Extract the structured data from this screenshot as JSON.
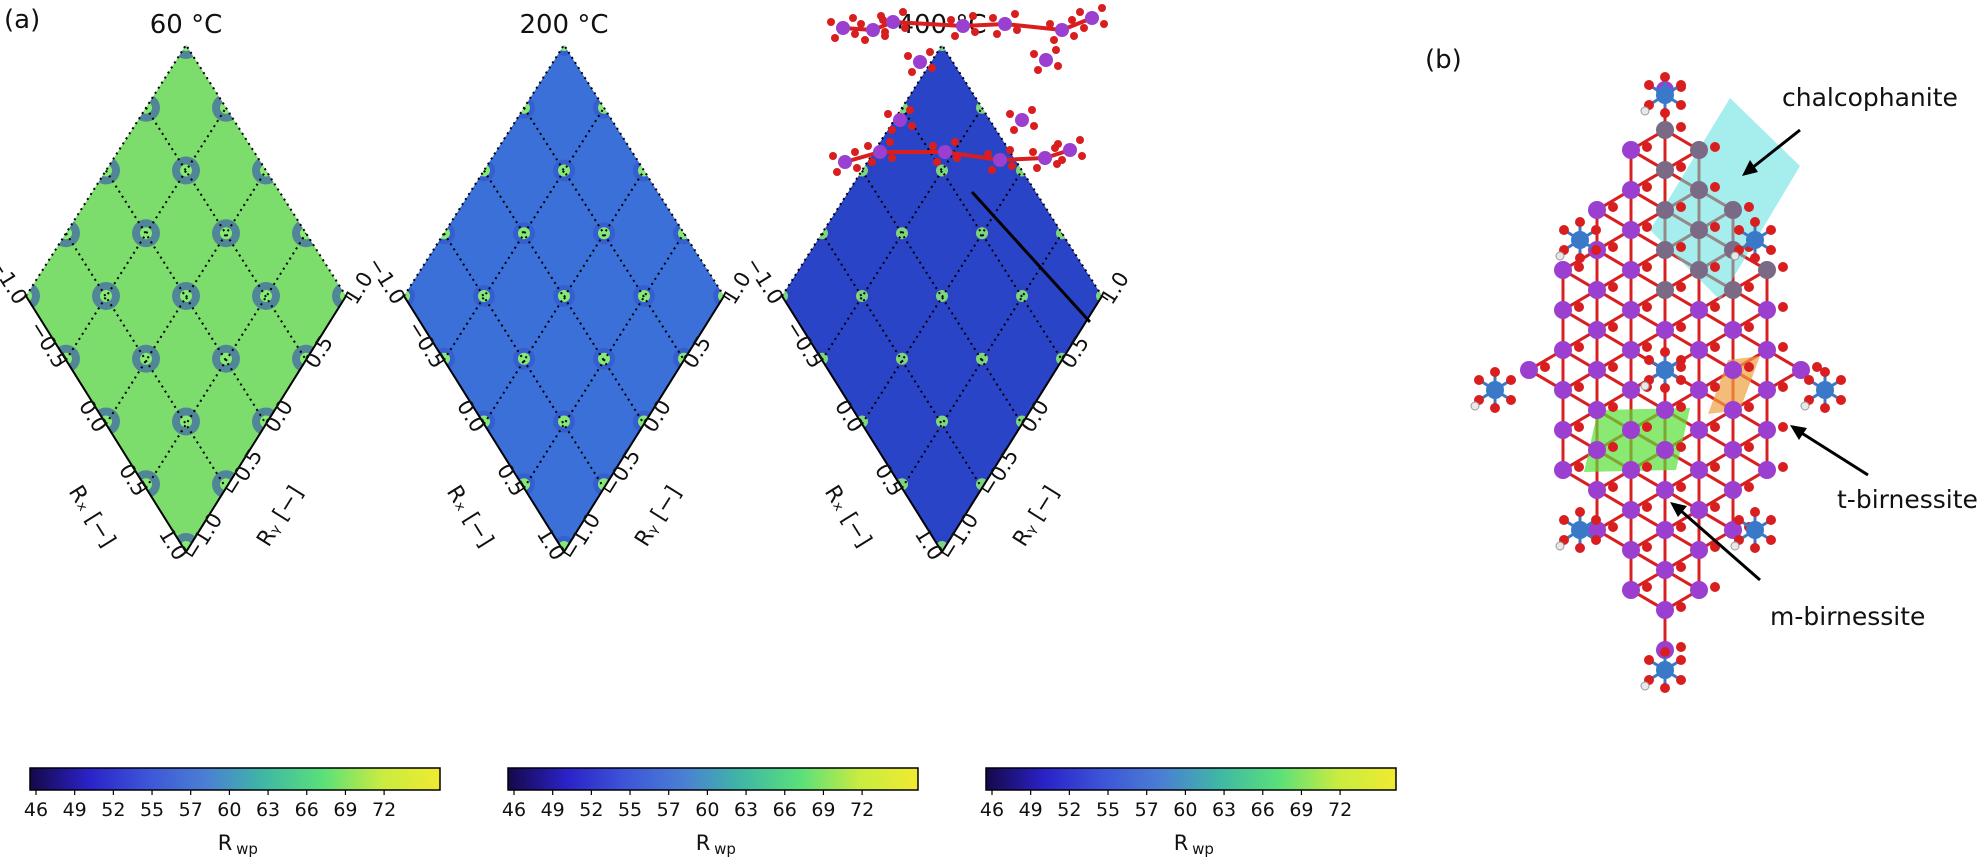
{
  "panel_a_label": "(a)",
  "panel_b_label": "(b)",
  "maps": [
    {
      "temperature": "60 °C",
      "level": "high"
    },
    {
      "temperature": "200 °C",
      "level": "mid"
    },
    {
      "temperature": "400 °C",
      "level": "low"
    }
  ],
  "axes": {
    "rx_label": "Rₓ [−]",
    "ry_label": "Rᵧ [−]",
    "rx_ticks": [
      "−1.0",
      "−0.5",
      "0.0",
      "0.5",
      "1.0"
    ],
    "ry_ticks": [
      "1.0",
      "0.5",
      "0.0",
      "−0.5",
      "−1.0"
    ]
  },
  "colorbar": {
    "ticks": [
      "46",
      "49",
      "52",
      "55",
      "57",
      "60",
      "63",
      "66",
      "69",
      "72"
    ],
    "label": "R",
    "label_sub": "wp",
    "colors": [
      "#15084a",
      "#2a22c8",
      "#3d55d8",
      "#4a7fd4",
      "#3fb8a4",
      "#5ae07a",
      "#c8ec40",
      "#f0ea30"
    ]
  },
  "colors": {
    "pane_high": "#7cdc6c",
    "pane_mid": "#3a70d8",
    "pane_low": "#2a44c8",
    "minimum_spot": "#8af070",
    "valley": "#2d3fc0",
    "mn_atom": "#9a3fd0",
    "o_atom": "#d81e1e",
    "zn_atom": "#3a78c8",
    "h_atom": "#e8e8e8",
    "chalcophanite_fill": "#5ce0e0",
    "t_birnessite_fill": "#f0a040",
    "m_birnessite_fill": "#58e038",
    "chalcophanite_atom": "#7a6a86"
  },
  "annotations": {
    "chalcophanite": "chalcophanite",
    "t_birnessite": "t-birnessite",
    "m_birnessite": "m-birnessite"
  }
}
